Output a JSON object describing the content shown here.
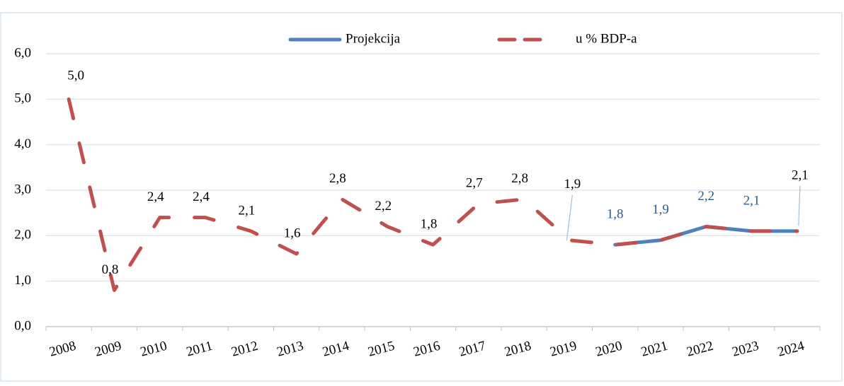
{
  "chart_data": {
    "type": "line",
    "categories": [
      "2008",
      "2009",
      "2010",
      "2011",
      "2012",
      "2013",
      "2014",
      "2015",
      "2016",
      "2017",
      "2018",
      "2019",
      "2020",
      "2021",
      "2022",
      "2023",
      "2024"
    ],
    "series": [
      {
        "name": "Projekcija",
        "color": "#4f81bd",
        "values": [
          null,
          null,
          null,
          null,
          null,
          null,
          null,
          null,
          null,
          null,
          null,
          null,
          1.8,
          1.9,
          2.2,
          2.1,
          2.1
        ],
        "value_labels": [
          null,
          null,
          null,
          null,
          null,
          null,
          null,
          null,
          null,
          null,
          null,
          null,
          "1,8",
          "1,9",
          "2,2",
          "2,1",
          null
        ]
      },
      {
        "name": "u % BDP-a",
        "color": "#c0504d",
        "values": [
          5.0,
          0.8,
          2.4,
          2.4,
          2.1,
          1.6,
          2.8,
          2.2,
          1.8,
          2.7,
          2.8,
          1.9,
          1.8,
          1.9,
          2.2,
          2.1,
          2.1
        ],
        "value_labels": [
          "5,0",
          "0,8",
          "2,4",
          "2,4",
          "2,1",
          "1,6",
          "2,8",
          "2,2",
          "1,8",
          "2,7",
          "2,8",
          "1,9",
          null,
          null,
          null,
          null,
          "2,1"
        ]
      }
    ],
    "ylim": [
      0,
      6
    ],
    "yticks": [
      {
        "value": 0,
        "label": "0,0"
      },
      {
        "value": 1,
        "label": "1,0"
      },
      {
        "value": 2,
        "label": "2,0"
      },
      {
        "value": 3,
        "label": "3,0"
      },
      {
        "value": 4,
        "label": "4,0"
      },
      {
        "value": 5,
        "label": "5,0"
      },
      {
        "value": 6,
        "label": "6,0"
      }
    ],
    "grid": true,
    "legend": "top"
  }
}
